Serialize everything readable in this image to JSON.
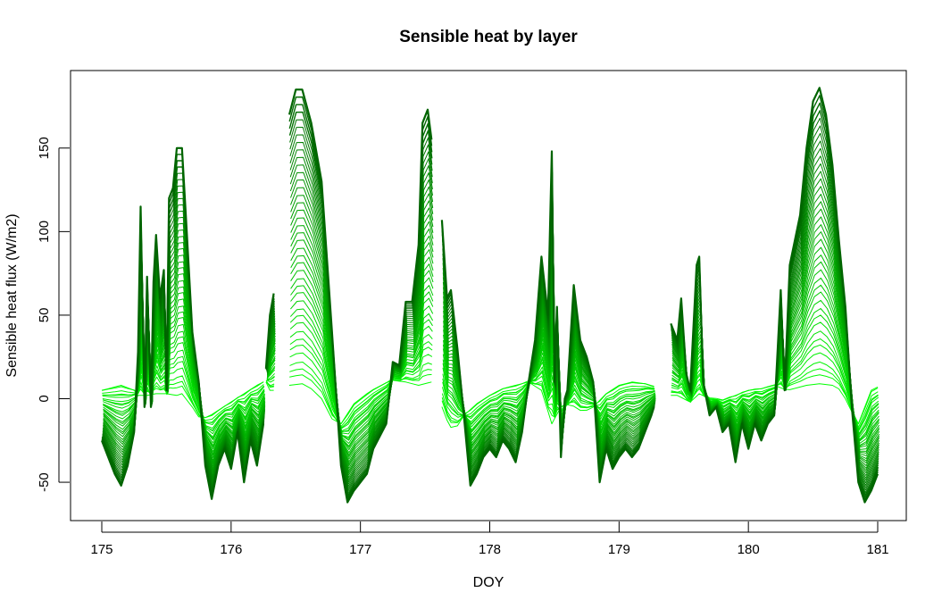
{
  "chart_data": {
    "type": "line",
    "title": "Sensible heat by layer",
    "xlabel": "DOY",
    "ylabel": "Sensible heat flux (W/m2)",
    "xlim": [
      175,
      181
    ],
    "ylim": [
      -75,
      193
    ],
    "x_ticks": [
      "175",
      "176",
      "177",
      "178",
      "179",
      "180",
      "181"
    ],
    "y_ticks": [
      "-50",
      "0",
      "50",
      "100",
      "150"
    ],
    "n_layers": 40,
    "color_top": "#00ff00",
    "color_bottom": "#006400",
    "grid": false,
    "legend": "none",
    "top_layer_envelope": [
      [
        175.0,
        5
      ],
      [
        175.15,
        8
      ],
      [
        175.25,
        5
      ],
      [
        175.28,
        2
      ],
      [
        175.35,
        2
      ],
      [
        175.42,
        3
      ],
      [
        175.5,
        3
      ],
      [
        175.58,
        2
      ],
      [
        175.62,
        3
      ],
      [
        175.7,
        -5
      ],
      [
        175.76,
        -12
      ],
      [
        175.82,
        -11
      ],
      [
        175.9,
        -7
      ],
      [
        176.0,
        -2
      ],
      [
        176.1,
        3
      ],
      [
        176.2,
        8
      ],
      [
        176.25,
        10
      ],
      null,
      [
        176.3,
        5
      ],
      [
        176.33,
        5
      ],
      null,
      [
        176.45,
        8
      ],
      [
        176.55,
        9
      ],
      [
        176.62,
        6
      ],
      [
        176.7,
        0
      ],
      [
        176.78,
        -12
      ],
      [
        176.85,
        -15
      ],
      [
        176.95,
        -3
      ],
      [
        177.05,
        3
      ],
      [
        177.15,
        8
      ],
      [
        177.25,
        11
      ],
      [
        177.35,
        10
      ],
      [
        177.45,
        8
      ],
      [
        177.55,
        10
      ],
      [
        177.6,
        3
      ],
      [
        177.65,
        -10
      ],
      [
        177.72,
        -20
      ],
      [
        177.8,
        -10
      ],
      [
        177.9,
        -3
      ],
      [
        178.0,
        2
      ],
      [
        178.1,
        6
      ],
      [
        178.2,
        8
      ],
      [
        178.3,
        10
      ],
      [
        178.4,
        5
      ],
      [
        178.48,
        -15
      ],
      [
        178.55,
        -5
      ],
      [
        178.62,
        -3
      ],
      [
        178.72,
        -8
      ],
      [
        178.8,
        -5
      ],
      [
        178.9,
        3
      ],
      [
        179.0,
        8
      ],
      [
        179.1,
        10
      ],
      [
        179.2,
        9
      ],
      [
        179.27,
        7
      ],
      null,
      [
        179.45,
        2
      ],
      [
        179.55,
        -2
      ],
      [
        179.62,
        3
      ],
      [
        179.7,
        0
      ],
      [
        179.8,
        -1
      ],
      [
        179.9,
        2
      ],
      [
        180.0,
        5
      ],
      [
        180.1,
        6
      ],
      [
        180.2,
        8
      ],
      [
        180.3,
        5
      ],
      [
        180.45,
        8
      ],
      [
        180.55,
        9
      ],
      [
        180.65,
        8
      ],
      [
        180.72,
        5
      ],
      [
        180.78,
        -5
      ],
      [
        180.85,
        -15
      ],
      [
        180.9,
        -5
      ],
      [
        180.95,
        5
      ],
      [
        181.0,
        7
      ]
    ],
    "bottom_layer_envelope": [
      [
        175.0,
        -25
      ],
      [
        175.05,
        -35
      ],
      [
        175.1,
        -45
      ],
      [
        175.15,
        -52
      ],
      [
        175.2,
        -40
      ],
      [
        175.25,
        -20
      ],
      [
        175.28,
        28
      ],
      [
        175.3,
        115
      ],
      [
        175.33,
        -5
      ],
      [
        175.35,
        73
      ],
      [
        175.38,
        -5
      ],
      [
        175.4,
        70
      ],
      [
        175.42,
        98
      ],
      [
        175.45,
        60
      ],
      [
        175.48,
        77
      ],
      [
        175.5,
        5
      ],
      [
        175.52,
        120
      ],
      [
        175.55,
        126
      ],
      [
        175.58,
        150
      ],
      [
        175.62,
        150
      ],
      [
        175.65,
        110
      ],
      [
        175.7,
        40
      ],
      [
        175.75,
        10
      ],
      [
        175.8,
        -40
      ],
      [
        175.85,
        -60
      ],
      [
        175.9,
        -40
      ],
      [
        175.95,
        -30
      ],
      [
        176.0,
        -42
      ],
      [
        176.05,
        -20
      ],
      [
        176.1,
        -50
      ],
      [
        176.15,
        -25
      ],
      [
        176.2,
        -40
      ],
      [
        176.25,
        -15
      ],
      null,
      [
        176.27,
        18
      ],
      [
        176.3,
        50
      ],
      [
        176.33,
        63
      ],
      null,
      [
        176.45,
        170
      ],
      [
        176.5,
        185
      ],
      [
        176.55,
        185
      ],
      [
        176.62,
        165
      ],
      [
        176.7,
        130
      ],
      [
        176.78,
        40
      ],
      [
        176.85,
        -40
      ],
      [
        176.9,
        -62
      ],
      [
        176.95,
        -55
      ],
      [
        177.0,
        -50
      ],
      [
        177.05,
        -45
      ],
      [
        177.1,
        -30
      ],
      [
        177.2,
        -15
      ],
      [
        177.25,
        22
      ],
      [
        177.3,
        20
      ],
      [
        177.35,
        58
      ],
      [
        177.4,
        58
      ],
      [
        177.45,
        92
      ],
      [
        177.48,
        165
      ],
      [
        177.52,
        173
      ],
      [
        177.55,
        155
      ],
      null,
      [
        177.63,
        107
      ],
      [
        177.67,
        60
      ],
      [
        177.7,
        65
      ],
      [
        177.75,
        30
      ],
      [
        177.8,
        -10
      ],
      [
        177.85,
        -52
      ],
      [
        177.9,
        -45
      ],
      [
        177.95,
        -35
      ],
      [
        178.0,
        -30
      ],
      [
        178.05,
        -35
      ],
      [
        178.1,
        -25
      ],
      [
        178.15,
        -30
      ],
      [
        178.2,
        -38
      ],
      [
        178.25,
        -20
      ],
      [
        178.3,
        10
      ],
      [
        178.35,
        35
      ],
      [
        178.4,
        85
      ],
      [
        178.45,
        50
      ],
      [
        178.48,
        148
      ],
      [
        178.5,
        10
      ],
      [
        178.52,
        55
      ],
      [
        178.55,
        -35
      ],
      [
        178.58,
        0
      ],
      [
        178.6,
        5
      ],
      [
        178.65,
        68
      ],
      [
        178.7,
        35
      ],
      [
        178.75,
        25
      ],
      [
        178.8,
        10
      ],
      [
        178.85,
        -50
      ],
      [
        178.9,
        -30
      ],
      [
        178.95,
        -42
      ],
      [
        179.0,
        -35
      ],
      [
        179.05,
        -30
      ],
      [
        179.1,
        -35
      ],
      [
        179.15,
        -30
      ],
      [
        179.2,
        -20
      ],
      [
        179.25,
        -10
      ],
      [
        179.27,
        -5
      ],
      null,
      [
        179.4,
        45
      ],
      [
        179.45,
        35
      ],
      [
        179.48,
        60
      ],
      [
        179.52,
        15
      ],
      [
        179.55,
        5
      ],
      [
        179.6,
        80
      ],
      [
        179.62,
        85
      ],
      [
        179.65,
        10
      ],
      [
        179.7,
        -10
      ],
      [
        179.75,
        -5
      ],
      [
        179.8,
        -20
      ],
      [
        179.85,
        -15
      ],
      [
        179.9,
        -38
      ],
      [
        179.95,
        -15
      ],
      [
        180.0,
        -30
      ],
      [
        180.05,
        -15
      ],
      [
        180.1,
        -25
      ],
      [
        180.15,
        -15
      ],
      [
        180.2,
        -10
      ],
      [
        180.25,
        65
      ],
      [
        180.28,
        5
      ],
      [
        180.32,
        80
      ],
      [
        180.4,
        110
      ],
      [
        180.45,
        150
      ],
      [
        180.5,
        178
      ],
      [
        180.55,
        186
      ],
      [
        180.6,
        170
      ],
      [
        180.65,
        140
      ],
      [
        180.7,
        95
      ],
      [
        180.75,
        55
      ],
      [
        180.8,
        -5
      ],
      [
        180.85,
        -50
      ],
      [
        180.9,
        -62
      ],
      [
        180.95,
        -55
      ],
      [
        181.0,
        -45
      ]
    ]
  }
}
